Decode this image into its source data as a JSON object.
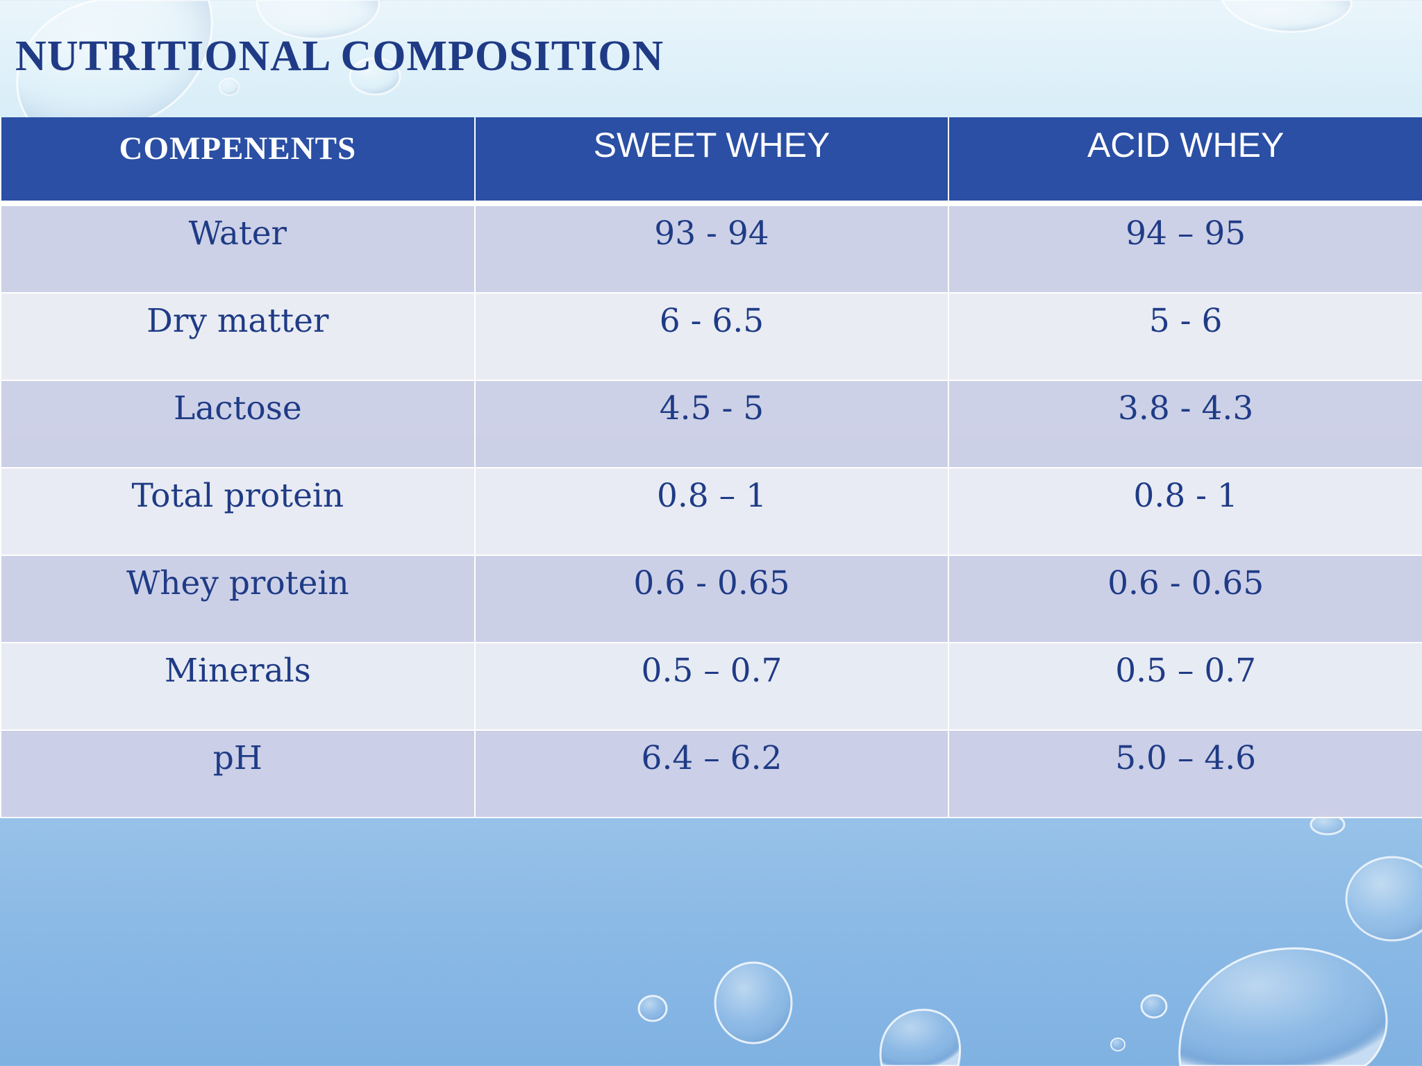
{
  "slide": {
    "title": "NUTRITIONAL COMPOSITION"
  },
  "table": {
    "headers": [
      "COMPENENTS",
      "SWEET WHEY",
      "ACID WHEY"
    ],
    "rows": [
      [
        "Water",
        "93 - 94",
        "94 – 95"
      ],
      [
        "Dry matter",
        "6 - 6.5",
        "5 - 6"
      ],
      [
        "Lactose",
        "4.5 - 5",
        "3.8 - 4.3"
      ],
      [
        "Total protein",
        "0.8 – 1",
        "0.8 - 1"
      ],
      [
        "Whey protein",
        "0.6 - 0.65",
        "0.6 - 0.65"
      ],
      [
        "Minerals",
        "0.5 – 0.7",
        "0.5 – 0.7"
      ],
      [
        "pH",
        "6.4 – 6.2",
        "5.0 – 4.6"
      ]
    ]
  },
  "colors": {
    "title_text": "#1f3b86",
    "header_bg": "#2a4fa4",
    "header_text": "#ffffff",
    "row_odd_bg": "#cccfe6",
    "row_even_bg": "#e9ebf3",
    "cell_text": "#1f3b86"
  }
}
